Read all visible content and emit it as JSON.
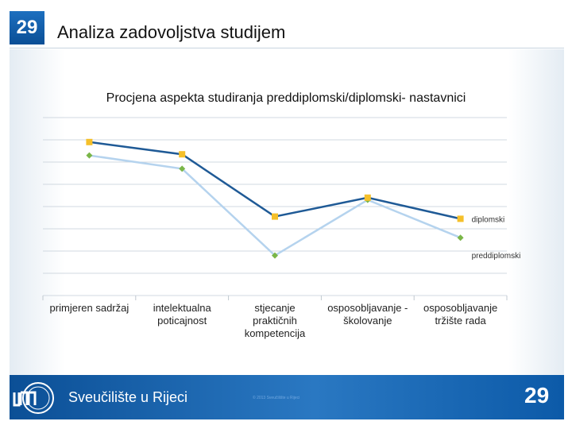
{
  "slide": {
    "number": "29",
    "title": "Analiza zadovoljstva studijem",
    "footer_university": "Sveučilište u Rijeci",
    "footer_note": "© 2013 Sveučilište u Rijeci",
    "footer_number": "29"
  },
  "colors": {
    "brand_blue": "#0b4f96",
    "series_diplomski_line": "#1f5a96",
    "series_diplomski_marker": "#f5c02a",
    "series_preddiplomski_line": "#b5d3ee",
    "series_preddiplomski_marker": "#7ab648"
  },
  "chart_data": {
    "type": "line",
    "title": "Procjena aspekta studiranja preddiplomski/diplomski- nastavnici",
    "xlabel": "",
    "ylabel": "",
    "ylim": [
      0,
      8
    ],
    "grid": true,
    "legend": "inline-labels",
    "categories": [
      [
        "primjeren sadržaj"
      ],
      [
        "intelektualna",
        "poticajnost"
      ],
      [
        "stjecanje",
        "praktičnih",
        "kompetencija"
      ],
      [
        "osposobljavanje -",
        "školovanje"
      ],
      [
        "osposobljavanje",
        "tržište rada"
      ]
    ],
    "series": [
      {
        "name": "diplomski",
        "values": [
          6.9,
          6.35,
          3.55,
          4.4,
          3.45
        ]
      },
      {
        "name": "preddiplomski",
        "values": [
          6.3,
          5.7,
          1.8,
          4.3,
          2.6
        ]
      }
    ]
  }
}
